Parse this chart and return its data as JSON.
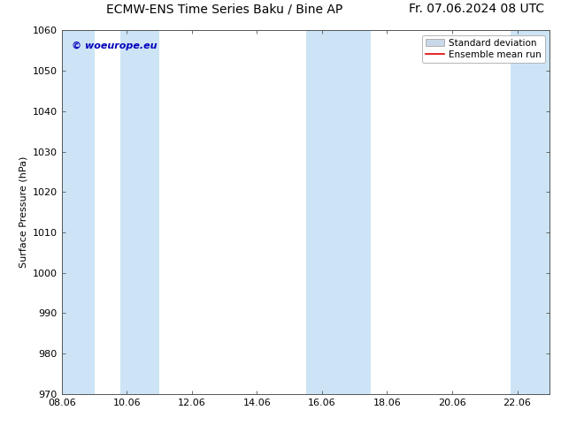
{
  "title_left": "ECMW-ENS Time Series Baku / Bine AP",
  "title_right": "Fr. 07.06.2024 08 UTC",
  "ylabel": "Surface Pressure (hPa)",
  "ylim": [
    970,
    1060
  ],
  "ytick_interval": 10,
  "xtick_labels": [
    "08.06",
    "10.06",
    "12.06",
    "14.06",
    "16.06",
    "18.06",
    "20.06",
    "22.06"
  ],
  "xtick_positions": [
    0,
    2,
    4,
    6,
    8,
    10,
    12,
    14
  ],
  "xlim": [
    0,
    15
  ],
  "shaded_bands": [
    {
      "x_start": 0.0,
      "x_end": 1.0
    },
    {
      "x_start": 1.8,
      "x_end": 3.0
    },
    {
      "x_start": 7.5,
      "x_end": 9.5
    },
    {
      "x_start": 13.8,
      "x_end": 15.0
    }
  ],
  "shade_color": "#cce4f5",
  "watermark_text": "© woeurope.eu",
  "watermark_color": "#0000bb",
  "legend_std_dev_facecolor": "#c8d8e8",
  "legend_std_dev_edgecolor": "#999999",
  "legend_mean_color": "#dd0000",
  "bg_color": "#ffffff",
  "title_fontsize": 10,
  "axis_label_fontsize": 8,
  "tick_fontsize": 8,
  "legend_fontsize": 7.5
}
